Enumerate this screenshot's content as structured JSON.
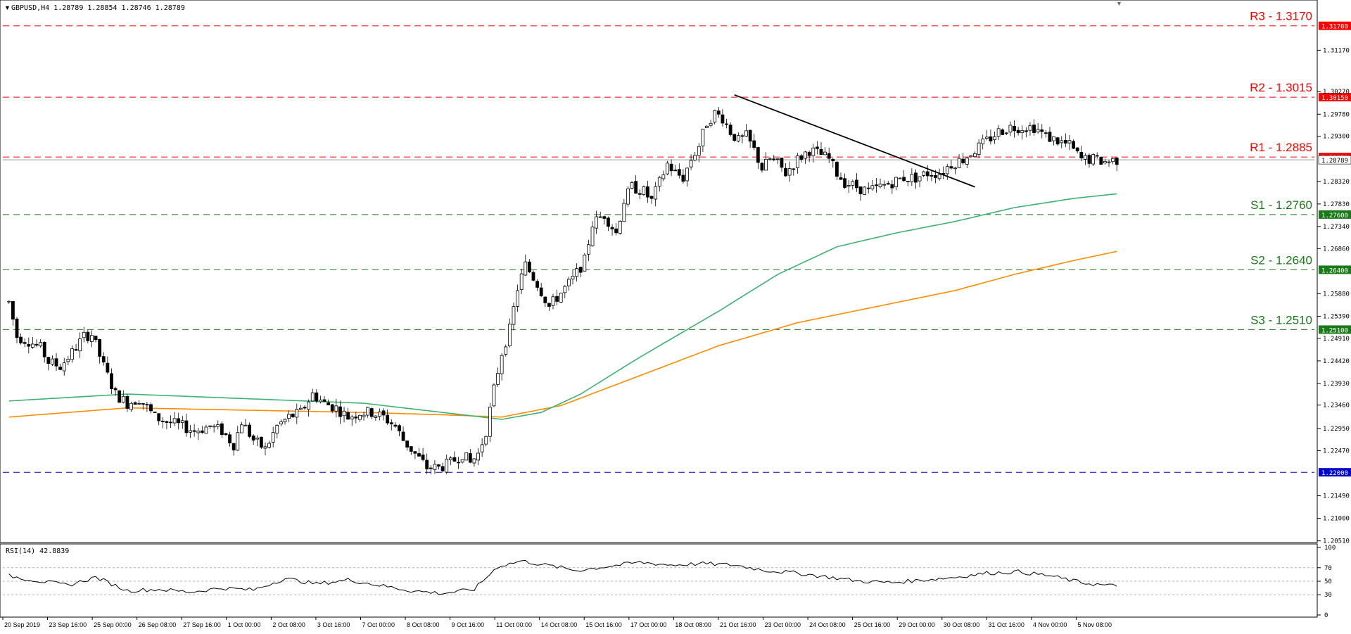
{
  "header": {
    "symbol_info": "GBPUSD,H4  1.28789 1.28854 1.28746 1.28789"
  },
  "rsi_panel": {
    "label": "RSI(14) 42.8839",
    "ticks": [
      "100",
      "70",
      "50",
      "30",
      "0"
    ]
  },
  "x_axis": {
    "labels": [
      "20 Sep 2019",
      "23 Sep 16:00",
      "25 Sep 00:00",
      "26 Sep 08:00",
      "27 Sep 16:00",
      "1 Oct 00:00",
      "2 Oct 08:00",
      "3 Oct 16:00",
      "7 Oct 00:00",
      "8 Oct 08:00",
      "9 Oct 16:00",
      "11 Oct 00:00",
      "14 Oct 08:00",
      "15 Oct 16:00",
      "17 Oct 00:00",
      "18 Oct 08:00",
      "21 Oct 16:00",
      "23 Oct 00:00",
      "24 Oct 08:00",
      "25 Oct 16:00",
      "29 Oct 00:00",
      "30 Oct 08:00",
      "31 Oct 16:00",
      "4 Nov 00:00",
      "5 Nov 08:00"
    ]
  },
  "chart_data": {
    "type": "candlestick",
    "symbol": "GBPUSD",
    "timeframe": "H4",
    "ylim": [
      1.2052,
      1.322
    ],
    "y_ticks": [
      "1.31170",
      "1.30270",
      "1.29780",
      "1.29300",
      "1.28320",
      "1.27830",
      "1.27340",
      "1.26860",
      "1.25880",
      "1.25390",
      "1.24910",
      "1.24420",
      "1.23930",
      "1.23460",
      "1.22950",
      "1.22470",
      "1.21490",
      "1.21000",
      "1.20510"
    ],
    "levels": [
      {
        "label": "R3 - 1.3170",
        "value": 1.317,
        "tag": "1.31700",
        "color": "#ff0000",
        "style": "dashed"
      },
      {
        "label": "R2 - 1.3015",
        "value": 1.3015,
        "tag": "1.30150",
        "color": "#ff0000",
        "style": "dashed"
      },
      {
        "label": "R1 - 1.2885",
        "value": 1.2885,
        "tag": "1.28850",
        "color": "#ff0000",
        "style": "dashed"
      },
      {
        "label": "S1 - 1.2760",
        "value": 1.276,
        "tag": "1.27600",
        "color": "#1a7a1a",
        "style": "dashed"
      },
      {
        "label": "S2 - 1.2640",
        "value": 1.264,
        "tag": "1.26400",
        "color": "#1a7a1a",
        "style": "dashed"
      },
      {
        "label": "S3 - 1.2510",
        "value": 1.251,
        "tag": "1.25100",
        "color": "#1a7a1a",
        "style": "dashed"
      },
      {
        "label": "",
        "value": 1.22,
        "tag": "1.22000",
        "color": "#0000cc",
        "style": "dashed"
      }
    ],
    "current_price": {
      "value": 1.28789,
      "tag": "1.28789"
    },
    "candle_anchors": [
      [
        0,
        1.257
      ],
      [
        2,
        1.2495
      ],
      [
        5,
        1.2485
      ],
      [
        8,
        1.247
      ],
      [
        10,
        1.244
      ],
      [
        13,
        1.243
      ],
      [
        16,
        1.246
      ],
      [
        19,
        1.2495
      ],
      [
        21,
        1.25
      ],
      [
        24,
        1.243
      ],
      [
        27,
        1.237
      ],
      [
        30,
        1.235
      ],
      [
        33,
        1.236
      ],
      [
        37,
        1.232
      ],
      [
        40,
        1.231
      ],
      [
        44,
        1.23
      ],
      [
        47,
        1.229
      ],
      [
        51,
        1.23
      ],
      [
        54,
        1.229
      ],
      [
        57,
        1.226
      ],
      [
        59,
        1.231
      ],
      [
        62,
        1.227
      ],
      [
        65,
        1.225
      ],
      [
        68,
        1.23
      ],
      [
        71,
        1.232
      ],
      [
        74,
        1.233
      ],
      [
        77,
        1.237
      ],
      [
        80,
        1.235
      ],
      [
        83,
        1.234
      ],
      [
        86,
        1.232
      ],
      [
        89,
        1.233
      ],
      [
        92,
        1.233
      ],
      [
        95,
        1.232
      ],
      [
        98,
        1.23
      ],
      [
        100,
        1.227
      ],
      [
        103,
        1.224
      ],
      [
        106,
        1.221
      ],
      [
        109,
        1.221
      ],
      [
        112,
        1.222
      ],
      [
        115,
        1.224
      ],
      [
        117,
        1.222
      ],
      [
        119,
        1.224
      ],
      [
        121,
        1.229
      ],
      [
        123,
        1.238
      ],
      [
        125,
        1.246
      ],
      [
        127,
        1.251
      ],
      [
        129,
        1.26
      ],
      [
        131,
        1.265
      ],
      [
        134,
        1.261
      ],
      [
        137,
        1.256
      ],
      [
        140,
        1.259
      ],
      [
        143,
        1.262
      ],
      [
        146,
        1.266
      ],
      [
        148,
        1.274
      ],
      [
        151,
        1.276
      ],
      [
        154,
        1.272
      ],
      [
        156,
        1.279
      ],
      [
        158,
        1.282
      ],
      [
        161,
        1.281
      ],
      [
        163,
        1.279
      ],
      [
        165,
        1.283
      ],
      [
        167,
        1.287
      ],
      [
        169,
        1.285
      ],
      [
        171,
        1.284
      ],
      [
        173,
        1.288
      ],
      [
        175,
        1.291
      ],
      [
        177,
        1.296
      ],
      [
        179,
        1.298
      ],
      [
        181,
        1.297
      ],
      [
        183,
        1.294
      ],
      [
        185,
        1.292
      ],
      [
        187,
        1.293
      ],
      [
        189,
        1.29
      ],
      [
        191,
        1.286
      ],
      [
        193,
        1.288
      ],
      [
        195,
        1.287
      ],
      [
        197,
        1.285
      ],
      [
        200,
        1.288
      ],
      [
        203,
        1.29
      ],
      [
        206,
        1.289
      ],
      [
        208,
        1.288
      ],
      [
        210,
        1.285
      ],
      [
        212,
        1.283
      ],
      [
        215,
        1.282
      ],
      [
        218,
        1.281
      ],
      [
        221,
        1.282
      ],
      [
        224,
        1.283
      ],
      [
        227,
        1.284
      ],
      [
        230,
        1.284
      ],
      [
        233,
        1.285
      ],
      [
        236,
        1.285
      ],
      [
        239,
        1.287
      ],
      [
        242,
        1.288
      ],
      [
        245,
        1.29
      ],
      [
        248,
        1.292
      ],
      [
        251,
        1.294
      ],
      [
        254,
        1.295
      ],
      [
        257,
        1.295
      ],
      [
        260,
        1.295
      ],
      [
        263,
        1.293
      ],
      [
        266,
        1.292
      ],
      [
        269,
        1.291
      ],
      [
        272,
        1.288
      ],
      [
        275,
        1.288
      ],
      [
        278,
        1.2875
      ],
      [
        281,
        1.2879
      ]
    ],
    "ma_green": [
      [
        0,
        1.2355
      ],
      [
        30,
        1.237
      ],
      [
        60,
        1.236
      ],
      [
        90,
        1.235
      ],
      [
        110,
        1.233
      ],
      [
        125,
        1.2315
      ],
      [
        135,
        1.233
      ],
      [
        145,
        1.237
      ],
      [
        160,
        1.245
      ],
      [
        180,
        1.255
      ],
      [
        195,
        1.263
      ],
      [
        210,
        1.269
      ],
      [
        225,
        1.272
      ],
      [
        240,
        1.2745
      ],
      [
        255,
        1.2775
      ],
      [
        270,
        1.2795
      ],
      [
        281,
        1.2805
      ]
    ],
    "ma_orange": [
      [
        0,
        1.232
      ],
      [
        30,
        1.234
      ],
      [
        60,
        1.2335
      ],
      [
        90,
        1.233
      ],
      [
        110,
        1.2325
      ],
      [
        125,
        1.232
      ],
      [
        140,
        1.2345
      ],
      [
        160,
        1.241
      ],
      [
        180,
        1.2475
      ],
      [
        200,
        1.2525
      ],
      [
        220,
        1.256
      ],
      [
        240,
        1.2595
      ],
      [
        255,
        1.263
      ],
      [
        270,
        1.266
      ],
      [
        281,
        1.268
      ]
    ],
    "trendline": [
      [
        184,
        1.302
      ],
      [
        245,
        1.282
      ]
    ],
    "rsi_values": [
      [
        0,
        58
      ],
      [
        8,
        50
      ],
      [
        15,
        44
      ],
      [
        22,
        56
      ],
      [
        30,
        36
      ],
      [
        38,
        38
      ],
      [
        46,
        34
      ],
      [
        54,
        40
      ],
      [
        62,
        37
      ],
      [
        70,
        54
      ],
      [
        78,
        46
      ],
      [
        86,
        52
      ],
      [
        94,
        44
      ],
      [
        102,
        36
      ],
      [
        110,
        32
      ],
      [
        118,
        38
      ],
      [
        124,
        72
      ],
      [
        130,
        80
      ],
      [
        136,
        74
      ],
      [
        144,
        66
      ],
      [
        152,
        72
      ],
      [
        160,
        78
      ],
      [
        168,
        74
      ],
      [
        176,
        76
      ],
      [
        184,
        74
      ],
      [
        192,
        66
      ],
      [
        200,
        62
      ],
      [
        208,
        56
      ],
      [
        216,
        50
      ],
      [
        224,
        48
      ],
      [
        232,
        52
      ],
      [
        240,
        56
      ],
      [
        248,
        62
      ],
      [
        256,
        64
      ],
      [
        264,
        58
      ],
      [
        272,
        48
      ],
      [
        278,
        44
      ],
      [
        281,
        43
      ]
    ]
  }
}
